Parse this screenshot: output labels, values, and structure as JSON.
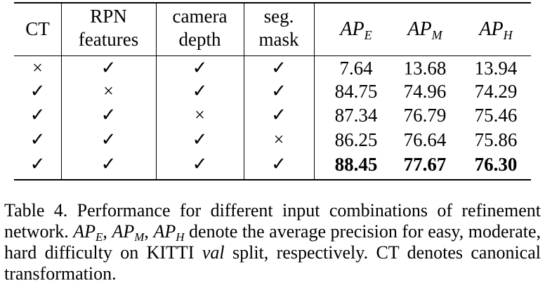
{
  "table": {
    "headers": [
      {
        "lines": [
          "CT"
        ]
      },
      {
        "lines": [
          "RPN",
          "features"
        ]
      },
      {
        "lines": [
          "camera",
          "depth"
        ]
      },
      {
        "lines": [
          "seg.",
          "mask"
        ]
      },
      {
        "base": "AP",
        "sub": "E"
      },
      {
        "base": "AP",
        "sub": "M"
      },
      {
        "base": "AP",
        "sub": "H"
      }
    ],
    "rows": [
      {
        "marks": [
          "×",
          "✓",
          "✓",
          "✓"
        ],
        "values": [
          "7.64",
          "13.68",
          "13.94"
        ],
        "bold": false
      },
      {
        "marks": [
          "✓",
          "×",
          "✓",
          "✓"
        ],
        "values": [
          "84.75",
          "74.96",
          "74.29"
        ],
        "bold": false
      },
      {
        "marks": [
          "✓",
          "✓",
          "×",
          "✓"
        ],
        "values": [
          "87.34",
          "76.79",
          "75.46"
        ],
        "bold": false
      },
      {
        "marks": [
          "✓",
          "✓",
          "✓",
          "×"
        ],
        "values": [
          "86.25",
          "76.64",
          "75.86"
        ],
        "bold": false
      },
      {
        "marks": [
          "✓",
          "✓",
          "✓",
          "✓"
        ],
        "values": [
          "88.45",
          "77.67",
          "76.30"
        ],
        "bold": true
      }
    ]
  },
  "caption": {
    "text1": "Table 4. Performance for different input combinations of refinement network. ",
    "ap_base": "AP",
    "sub_e": "E",
    "sub_m": "M",
    "sub_h": "H",
    "sep": ", ",
    "text2": " denote the average precision for easy, moderate, hard difficulty on KITTI ",
    "italic_word": "val",
    "text3": " split, respectively. CT denotes canonical transformation."
  }
}
